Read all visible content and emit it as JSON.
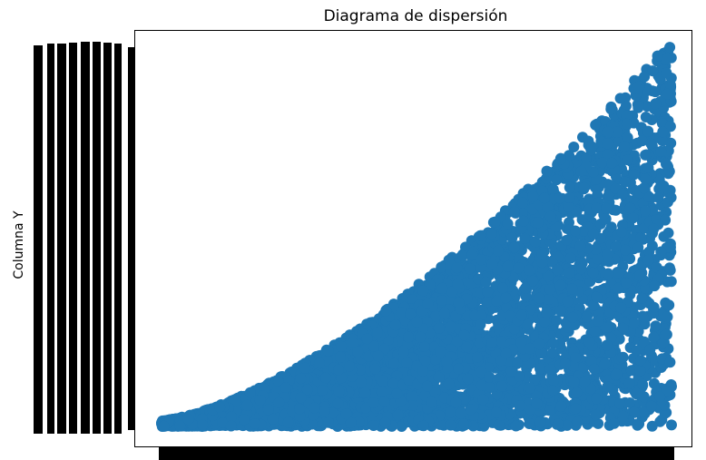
{
  "chart_data": {
    "type": "scatter",
    "title": "Diagrama de dispersión",
    "xlabel": "",
    "ylabel": "Columna Y",
    "x_range": [
      0,
      1
    ],
    "y_range": [
      0,
      1
    ],
    "grid": false,
    "legend": "none",
    "x_tick_labels_legible": false,
    "y_tick_labels_legible": false,
    "marker": "circle",
    "color": "#1f77b4",
    "description_of_distribution": "",
    "point_count_estimate": 5000
  }
}
